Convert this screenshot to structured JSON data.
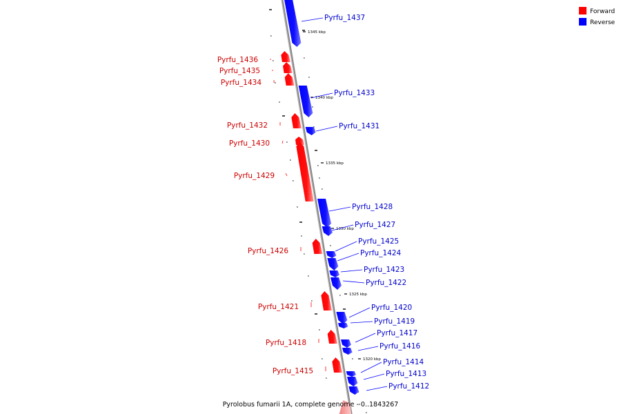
{
  "caption": "Pyrolobus fumarii 1A, complete genome - 0..1843267",
  "legend": [
    {
      "label": "Forward",
      "color": "#ff0000"
    },
    {
      "label": "Reverse",
      "color": "#0000ff"
    }
  ],
  "colors": {
    "forward": "#ff0000",
    "reverse": "#0000ff",
    "axis": "#808080"
  },
  "ticks": [
    "1345 kbp",
    "1340 kbp",
    "1335 kbp",
    "1330 kbp",
    "1325 kbp",
    "1320 kbp"
  ],
  "genes": [
    {
      "name": "Pyrfu_1437",
      "strand": "reverse"
    },
    {
      "name": "Pyrfu_1436",
      "strand": "forward"
    },
    {
      "name": "Pyrfu_1435",
      "strand": "forward"
    },
    {
      "name": "Pyrfu_1434",
      "strand": "forward"
    },
    {
      "name": "Pyrfu_1433",
      "strand": "reverse"
    },
    {
      "name": "Pyrfu_1432",
      "strand": "forward"
    },
    {
      "name": "Pyrfu_1431",
      "strand": "reverse"
    },
    {
      "name": "Pyrfu_1430",
      "strand": "forward"
    },
    {
      "name": "Pyrfu_1429",
      "strand": "forward"
    },
    {
      "name": "Pyrfu_1428",
      "strand": "reverse"
    },
    {
      "name": "Pyrfu_1427",
      "strand": "reverse"
    },
    {
      "name": "Pyrfu_1426",
      "strand": "forward"
    },
    {
      "name": "Pyrfu_1425",
      "strand": "reverse"
    },
    {
      "name": "Pyrfu_1424",
      "strand": "reverse"
    },
    {
      "name": "Pyrfu_1423",
      "strand": "reverse"
    },
    {
      "name": "Pyrfu_1422",
      "strand": "reverse"
    },
    {
      "name": "Pyrfu_1421",
      "strand": "forward"
    },
    {
      "name": "Pyrfu_1420",
      "strand": "reverse"
    },
    {
      "name": "Pyrfu_1419",
      "strand": "reverse"
    },
    {
      "name": "Pyrfu_1418",
      "strand": "forward"
    },
    {
      "name": "Pyrfu_1417",
      "strand": "reverse"
    },
    {
      "name": "Pyrfu_1416",
      "strand": "reverse"
    },
    {
      "name": "Pyrfu_1415",
      "strand": "forward"
    },
    {
      "name": "Pyrfu_1414",
      "strand": "reverse"
    },
    {
      "name": "Pyrfu_1413",
      "strand": "reverse"
    },
    {
      "name": "Pyrfu_1412",
      "strand": "reverse"
    }
  ]
}
